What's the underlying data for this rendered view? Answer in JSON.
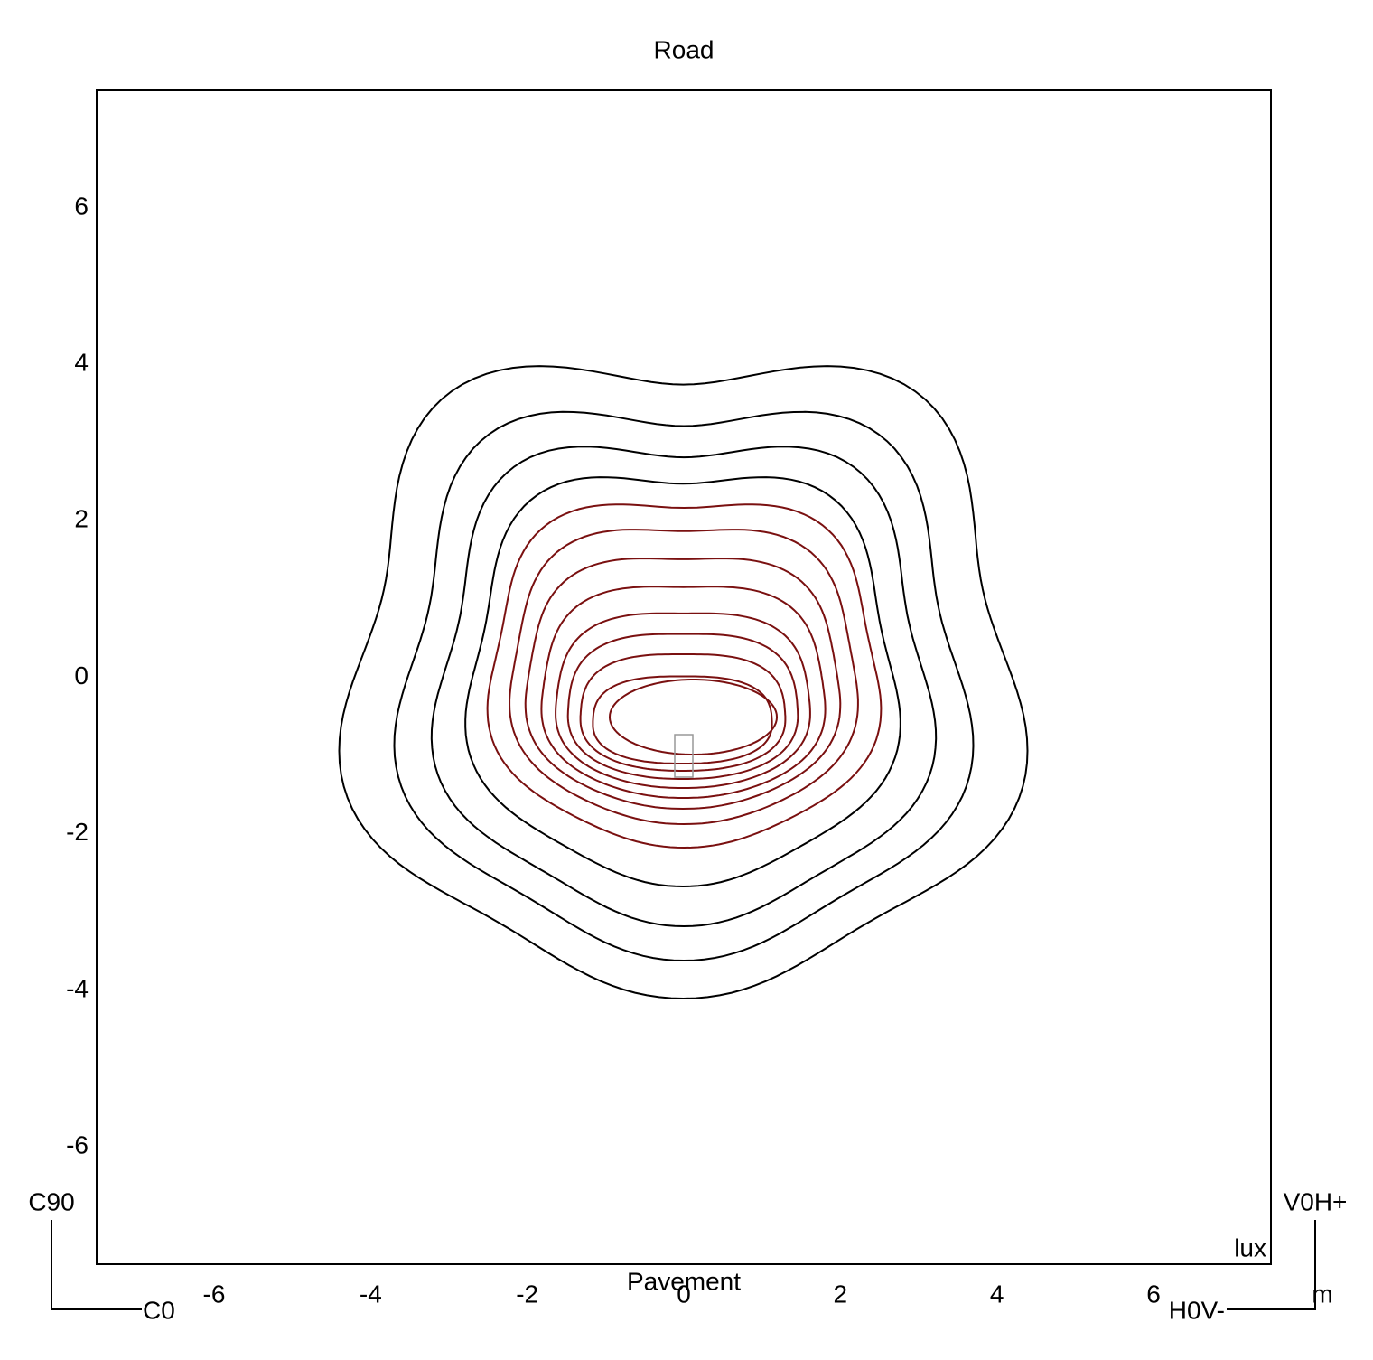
{
  "chart_data": {
    "type": "contour",
    "title": "Road",
    "xlabel": "Pavement",
    "unit_label": "lux",
    "corner_labels": {
      "top_left": "C90",
      "bottom_left": "C0",
      "top_right": "V0H+",
      "bottom_right": "H0V-",
      "axis_unit": "m"
    },
    "xlim": [
      -7.5,
      7.5
    ],
    "ylim": [
      -7.5,
      7.5
    ],
    "xticks": [
      -6,
      -4,
      -2,
      0,
      2,
      4,
      6
    ],
    "yticks": [
      -6,
      -4,
      -2,
      0,
      2,
      4,
      6
    ]
  }
}
